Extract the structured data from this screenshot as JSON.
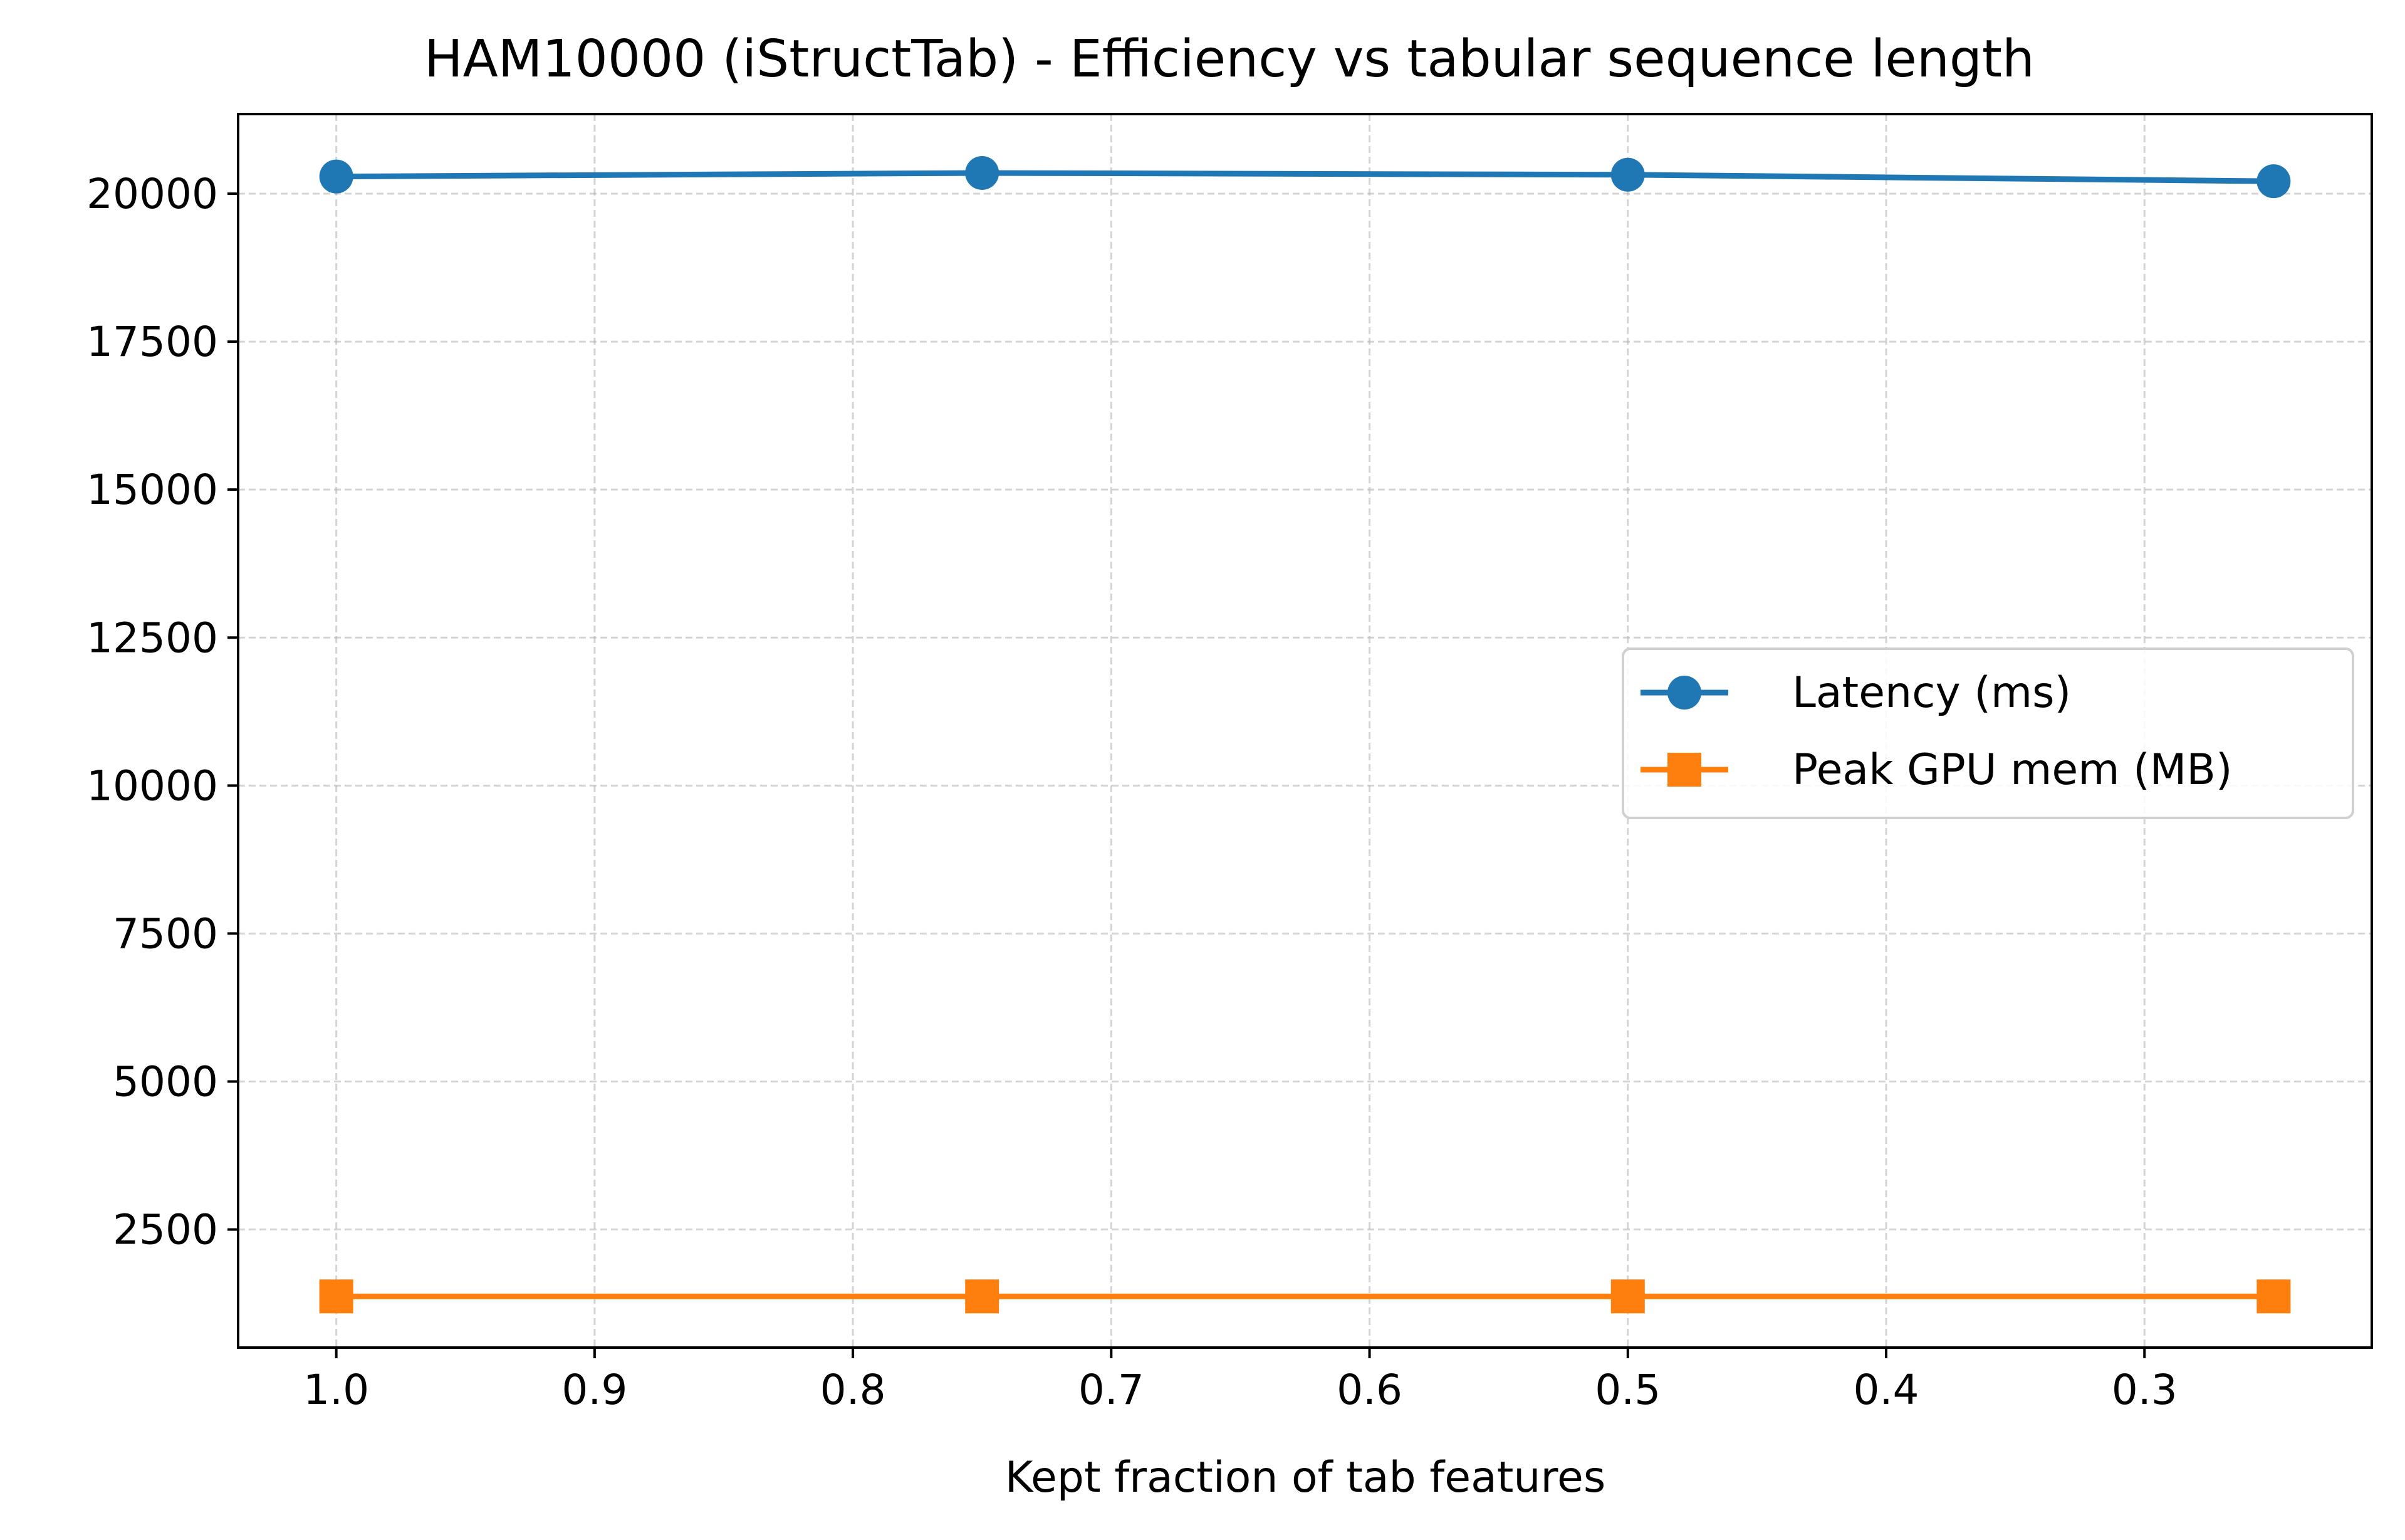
{
  "chart_data": {
    "type": "line",
    "title": "HAM10000 (iStructTab) - Efficiency vs tabular sequence length",
    "xlabel": "Kept fraction of tab features",
    "ylabel": "",
    "x": [
      1.0,
      0.75,
      0.5,
      0.25
    ],
    "xlim": [
      1.038,
      0.212
    ],
    "x_inverted": true,
    "xticks": [
      1.0,
      0.9,
      0.8,
      0.7,
      0.6,
      0.5,
      0.4,
      0.3
    ],
    "xtick_labels": [
      "1.0",
      "0.9",
      "0.8",
      "0.7",
      "0.6",
      "0.5",
      "0.4",
      "0.3"
    ],
    "ylim": [
      505,
      21345
    ],
    "yticks": [
      2500,
      5000,
      7500,
      10000,
      12500,
      15000,
      17500,
      20000
    ],
    "ytick_labels": [
      "2500",
      "5000",
      "7500",
      "10000",
      "12500",
      "15000",
      "17500",
      "20000"
    ],
    "grid": true,
    "legend_position": "center-right",
    "series": [
      {
        "name": "Latency (ms)",
        "values": [
          20290,
          20350,
          20320,
          20210
        ],
        "color": "#1f77b4",
        "marker": "circle"
      },
      {
        "name": "Peak GPU mem (MB)",
        "values": [
          1370,
          1370,
          1370,
          1370
        ],
        "color": "#ff7f0e",
        "marker": "square"
      }
    ]
  }
}
